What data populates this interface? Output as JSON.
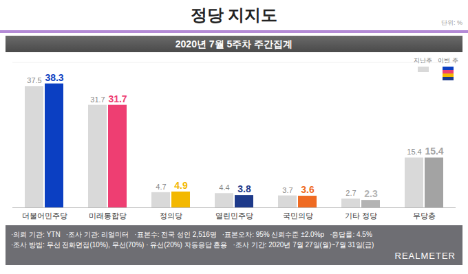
{
  "chart_data": {
    "type": "bar",
    "title": "정당 지지도",
    "subtitle": "2020년 7월 5주차 주간집계",
    "unit_note": "단위: %",
    "categories": [
      "더불어민주당",
      "미래통합당",
      "정의당",
      "열린민주당",
      "국민의당",
      "기타 정당",
      "무당층"
    ],
    "series": [
      {
        "name": "지난주",
        "color": "#d9d9d9",
        "values": [
          37.5,
          31.7,
          4.7,
          4.4,
          3.7,
          2.7,
          15.4
        ]
      },
      {
        "name": "이번 주",
        "colors": [
          "#0b3fc2",
          "#ee3e72",
          "#f3b800",
          "#1e3a8a",
          "#ef6a22",
          "#b3b3b3",
          "#a3a3a3"
        ],
        "values": [
          38.3,
          31.7,
          4.9,
          3.8,
          3.6,
          2.3,
          15.4
        ]
      }
    ],
    "ylim": [
      0,
      45
    ],
    "grid": false,
    "legend": "top-right",
    "data_labels": true,
    "tick_labels": "x",
    "notes": [
      [
        "·의뢰 기관: YTN",
        "·조사 기관: 리얼미터",
        "·표본수: 전국 성인 2,516명",
        "·표본오차: 95% 신뢰수준 ±2.0%p",
        "·응답률: 4.5%"
      ],
      [
        "·조사 방법: 무선 전화면접(10%), 무선(70%) · 유선(20%) 자동응답 혼용",
        "·조사 기간: 2020년 7월 27일(월)~7월 31일(금)"
      ]
    ],
    "source": "REALMETER"
  }
}
